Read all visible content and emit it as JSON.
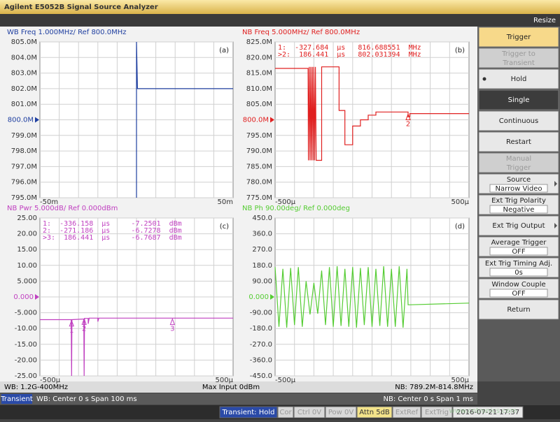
{
  "window": {
    "title": "Agilent E5052B Signal Source Analyzer",
    "resize": "Resize"
  },
  "charts": [
    {
      "type": "line",
      "title": "WB Freq 1.000MHz/ Ref 800.0MHz",
      "label": "(a)",
      "color": "#1f3fa0",
      "ref": 800000000,
      "ylim": [
        795000000,
        805000000
      ],
      "yticks": [
        {
          "value": 805000000,
          "label": "805.0M"
        },
        {
          "value": 804000000,
          "label": "804.0M"
        },
        {
          "value": 803000000,
          "label": "803.0M"
        },
        {
          "value": 802000000,
          "label": "802.0M"
        },
        {
          "value": 801000000,
          "label": "801.0M"
        },
        {
          "value": 800000000,
          "label": "800.0M"
        },
        {
          "value": 799000000,
          "label": "799.0M"
        },
        {
          "value": 798000000,
          "label": "798.0M"
        },
        {
          "value": 797000000,
          "label": "797.0M"
        },
        {
          "value": 796000000,
          "label": "796.0M"
        },
        {
          "value": 795000000,
          "label": "795.0M"
        }
      ],
      "xlim": [
        -0.05,
        0.05
      ],
      "xticks": [
        {
          "value": -0.05,
          "label": "-50m"
        },
        {
          "value": 0.05,
          "label": "50m"
        }
      ],
      "x": [
        0,
        0,
        0.0005,
        0.05
      ],
      "y": [
        795000000,
        805000000,
        802000000,
        802000000
      ]
    },
    {
      "type": "line",
      "title": "NB Freq 5.000MHz/ Ref 800.0MHz",
      "label": "(b)",
      "color": "#e02020",
      "ref": 800000000,
      "markers": [
        "1:  -327.684  µs   816.688551  MHz",
        ">2:  186.441  µs   802.031394  MHz"
      ],
      "flags": [
        {
          "label": "2",
          "x": 0.000186,
          "y": 802031394
        }
      ],
      "ylim": [
        775000000,
        825000000
      ],
      "yticks": [
        {
          "value": 825000000,
          "label": "825.0M"
        },
        {
          "value": 820000000,
          "label": "820.0M"
        },
        {
          "value": 815000000,
          "label": "815.0M"
        },
        {
          "value": 810000000,
          "label": "810.0M"
        },
        {
          "value": 805000000,
          "label": "805.0M"
        },
        {
          "value": 800000000,
          "label": "800.0M"
        },
        {
          "value": 795000000,
          "label": "795.0M"
        },
        {
          "value": 790000000,
          "label": "790.0M"
        },
        {
          "value": 785000000,
          "label": "785.0M"
        },
        {
          "value": 780000000,
          "label": "780.0M"
        },
        {
          "value": 775000000,
          "label": "775.0M"
        }
      ],
      "xlim": [
        -0.0005,
        0.0005
      ],
      "xticks": [
        {
          "value": -0.0005,
          "label": "-500µ"
        },
        {
          "value": 0.0005,
          "label": "500µ"
        }
      ],
      "x": [
        -0.0005,
        -0.00033,
        -0.000328,
        -0.000324,
        -0.00032,
        -0.000316,
        -0.000312,
        -0.000308,
        -0.000304,
        -0.0003,
        -0.000296,
        -0.000292,
        -0.000288,
        -0.00026,
        -0.00026,
        -0.00017,
        -0.00017,
        -0.00014,
        -0.00014,
        -0.0001,
        -0.0001,
        -6e-05,
        -6e-05,
        -2e-05,
        -2e-05,
        2e-05,
        2e-05,
        0.000186,
        0.000186,
        0.000195,
        0.000195,
        0.0005
      ],
      "y": [
        816500000,
        816500000,
        787000000,
        817000000,
        787000000,
        817000000,
        787000000,
        817000000,
        787000000,
        817000000,
        787000000,
        817000000,
        787000000,
        787000000,
        817000000,
        817000000,
        803000000,
        803000000,
        792000000,
        792000000,
        798000000,
        798000000,
        800000000,
        800000000,
        801500000,
        801500000,
        802500000,
        802500000,
        801000000,
        801000000,
        802000000,
        802000000
      ]
    },
    {
      "type": "line",
      "title": "NB Pwr 5.000dB/ Ref 0.000dBm",
      "label": "(c)",
      "color": "#c040c0",
      "ref": 0,
      "markers": [
        "1:  -336.158  µs     -7.2501  dBm",
        "2:  -271.186  µs     -6.7278  dBm",
        ">3:  186.441  µs     -6.7687  dBm"
      ],
      "flags": [
        {
          "label": "1",
          "x": -0.000336,
          "y": -7.2501
        },
        {
          "label": "2",
          "x": -0.000271,
          "y": -6.7278
        },
        {
          "label": "3",
          "x": 0.000186,
          "y": -6.7687
        }
      ],
      "ylim": [
        -25,
        25
      ],
      "yticks": [
        {
          "value": 25,
          "label": "25.00"
        },
        {
          "value": 20,
          "label": "20.00"
        },
        {
          "value": 15,
          "label": "15.00"
        },
        {
          "value": 10,
          "label": "10.00"
        },
        {
          "value": 5,
          "label": "5.000"
        },
        {
          "value": 0,
          "label": "0.000"
        },
        {
          "value": -5,
          "label": "-5.000"
        },
        {
          "value": -10,
          "label": "-10.00"
        },
        {
          "value": -15,
          "label": "-15.00"
        },
        {
          "value": -20,
          "label": "-20.00"
        },
        {
          "value": -25,
          "label": "-25.00"
        }
      ],
      "xlim": [
        -0.0005,
        0.0005
      ],
      "xticks": [
        {
          "value": -0.0005,
          "label": "-500µ"
        },
        {
          "value": 0.0005,
          "label": "500µ"
        }
      ],
      "x": [
        -0.0005,
        -0.000338,
        -0.000336,
        -0.000334,
        -0.000273,
        -0.000271,
        -0.000269,
        -0.00025,
        -0.00025,
        -0.000245,
        -0.0002,
        -0.0002,
        -0.000195,
        0.0005
      ],
      "y": [
        -7.2,
        -7.2,
        -25,
        -7.2,
        -7.0,
        -25,
        -6.8,
        -6.8,
        -8.5,
        -6.7,
        -6.7,
        -7.8,
        -6.7,
        -6.7
      ]
    },
    {
      "type": "line",
      "title": "NB Ph 90.00deg/ Ref 0.000deg",
      "label": "(d)",
      "color": "#55cc33",
      "ref": 0,
      "ylim": [
        -450,
        450
      ],
      "yticks": [
        {
          "value": 450,
          "label": "450.0"
        },
        {
          "value": 360,
          "label": "360.0"
        },
        {
          "value": 270,
          "label": "270.0"
        },
        {
          "value": 180,
          "label": "180.0"
        },
        {
          "value": 90,
          "label": "90.00"
        },
        {
          "value": 0,
          "label": "0.000"
        },
        {
          "value": -90,
          "label": "-90.00"
        },
        {
          "value": -180,
          "label": "-180.0"
        },
        {
          "value": -270,
          "label": "-270.0"
        },
        {
          "value": -360,
          "label": "-360.0"
        },
        {
          "value": -450,
          "label": "-450.0"
        }
      ],
      "xlim": [
        -0.0005,
        0.0005
      ],
      "xticks": [
        {
          "value": -0.0005,
          "label": "-500µ"
        },
        {
          "value": 0.0005,
          "label": "500µ"
        }
      ],
      "x": [
        -0.0005,
        -0.00048,
        -0.00046,
        -0.00044,
        -0.00042,
        -0.0004,
        -0.00038,
        -0.00036,
        -0.00034,
        -0.00032,
        -0.0003,
        -0.00028,
        -0.00026,
        -0.00024,
        -0.00022,
        -0.0002,
        -0.00018,
        -0.00016,
        -0.00014,
        -0.00012,
        -0.0001,
        -8e-05,
        -6e-05,
        -4e-05,
        -2e-05,
        0,
        2e-05,
        4e-05,
        6e-05,
        8e-05,
        0.0001,
        0.00012,
        0.00014,
        0.00016,
        0.00018,
        0.000186,
        0.0005
      ],
      "y": [
        170,
        -170,
        160,
        -175,
        165,
        -160,
        170,
        -170,
        90,
        -100,
        80,
        -95,
        150,
        -160,
        170,
        -170,
        175,
        -165,
        160,
        -170,
        170,
        -175,
        165,
        -160,
        170,
        -170,
        160,
        -165,
        175,
        -170,
        160,
        -170,
        175,
        -175,
        160,
        -45,
        -35
      ]
    }
  ],
  "softkeys": [
    {
      "label": "Trigger",
      "state": "header"
    },
    {
      "label": "Trigger to",
      "value": "Transient",
      "state": "disabled"
    },
    {
      "label": "Hold",
      "state": "radio"
    },
    {
      "label": "Single",
      "state": "selected"
    },
    {
      "label": "Continuous",
      "state": "normal"
    },
    {
      "label": "Restart",
      "state": "normal"
    },
    {
      "label": "Manual",
      "value": "Trigger",
      "state": "disabled"
    },
    {
      "label": "Source",
      "value": "Narrow Video",
      "state": "submenu"
    },
    {
      "label": "Ext Trig Polarity",
      "value": "Negative",
      "state": "normal"
    },
    {
      "label": "Ext Trig Output",
      "state": "submenu"
    },
    {
      "label": "Average Trigger",
      "value": "OFF",
      "state": "normal"
    },
    {
      "label": "Ext Trig Timing Adj.",
      "value": "0s",
      "state": "normal"
    },
    {
      "label": "Window Couple",
      "value": "OFF",
      "state": "normal"
    },
    {
      "label": "Return",
      "state": "normal"
    }
  ],
  "info": {
    "wb_range": "WB: 1.2G-400MHz",
    "max_input": "Max Input 0dBm",
    "nb_range": "NB: 789.2M-814.8MHz",
    "mode": "Transient",
    "wb_span": "WB: Center 0 s Span 100 ms",
    "nb_span": "NB: Center 0 s  Span 1 ms"
  },
  "status": [
    {
      "text": "Transient: Hold",
      "style": "blue"
    },
    {
      "text": "Cor",
      "style": "gray"
    },
    {
      "text": "Ctrl  0V",
      "style": "gray"
    },
    {
      "text": "Pow  0V",
      "style": "gray"
    },
    {
      "text": "Attn 5dB",
      "style": "yellow"
    },
    {
      "text": "ExtRef",
      "style": "gray"
    },
    {
      "text": "ExtTrig",
      "style": "gray"
    },
    {
      "text": "2016-07-21 17:37",
      "style": "dark"
    }
  ],
  "watermark": "www.cntronics.com"
}
